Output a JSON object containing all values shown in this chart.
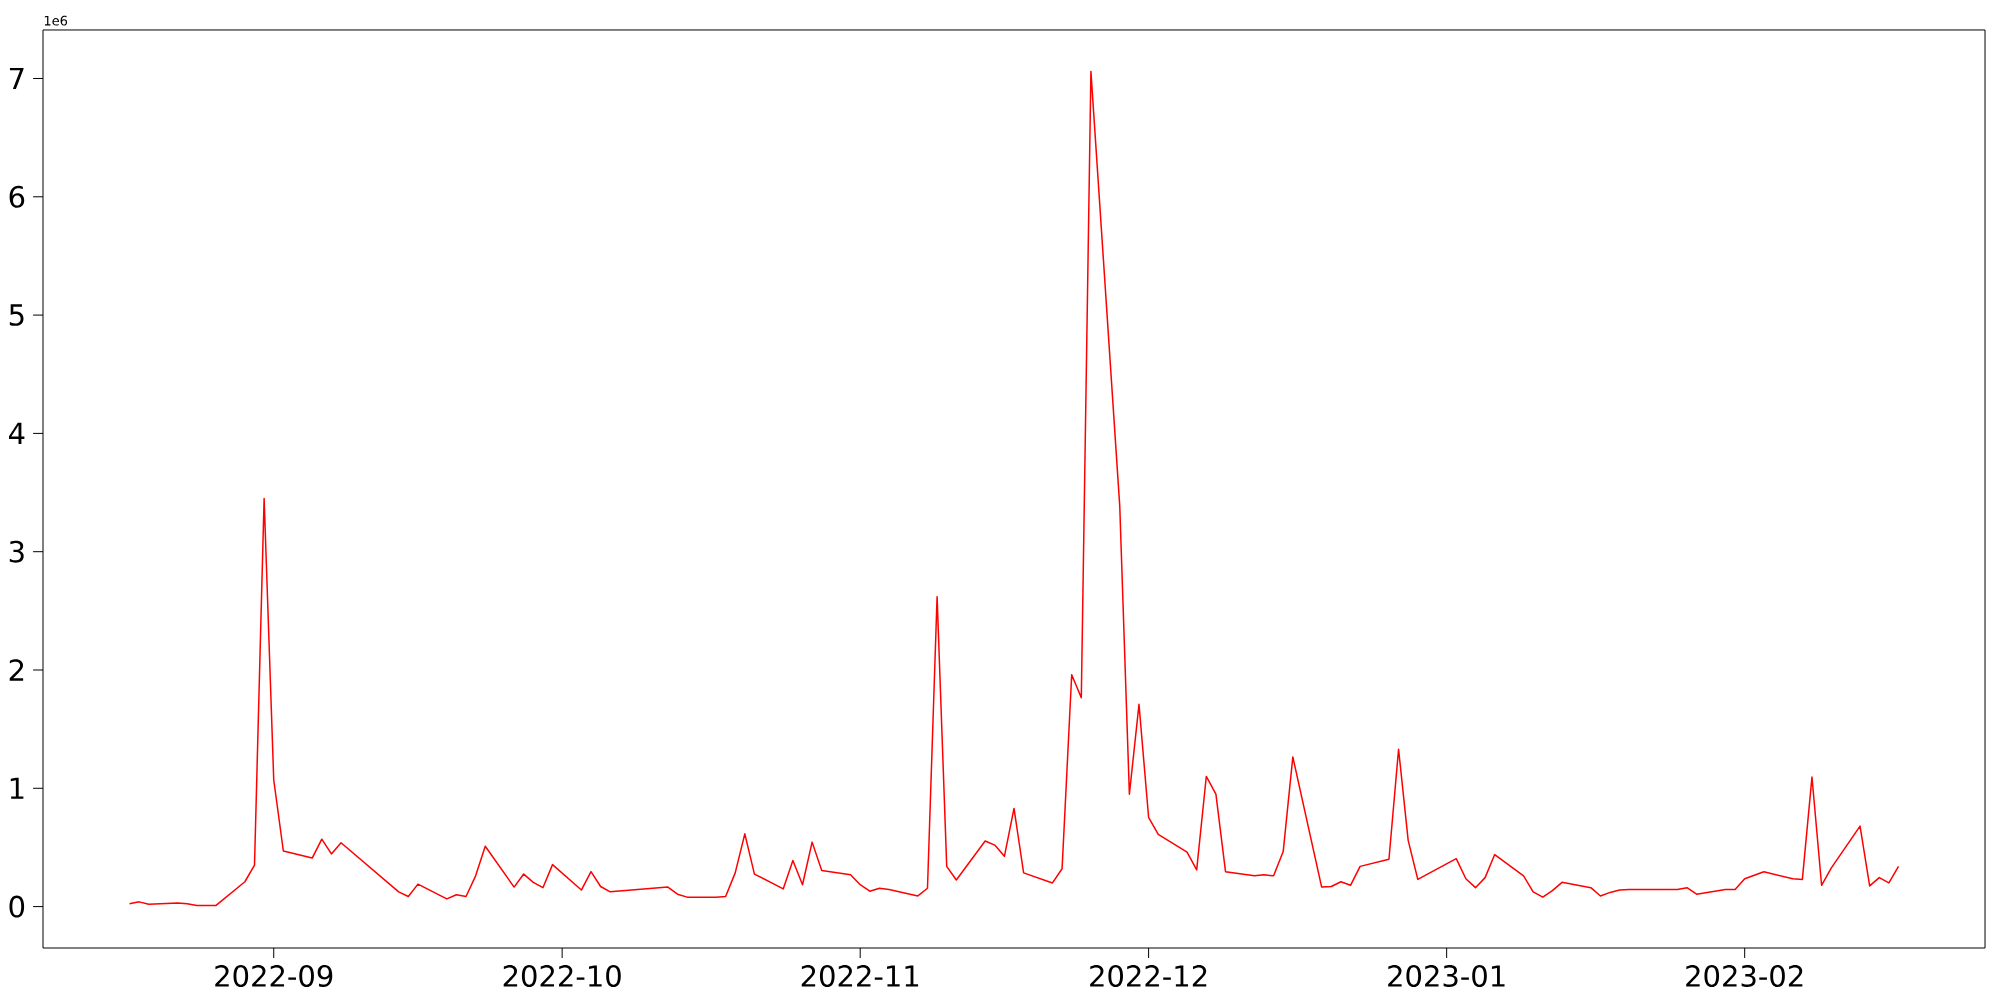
{
  "chart_data": {
    "type": "line",
    "color": "#ff0000",
    "line_style": "solid",
    "marker": "none",
    "x": [
      "2022-08-17",
      "2022-08-18",
      "2022-08-19",
      "2022-08-22",
      "2022-08-23",
      "2022-08-24",
      "2022-08-26",
      "2022-08-29",
      "2022-08-30",
      "2022-08-31",
      "2022-09-01",
      "2022-09-02",
      "2022-09-05",
      "2022-09-06",
      "2022-09-07",
      "2022-09-08",
      "2022-09-14",
      "2022-09-15",
      "2022-09-16",
      "2022-09-19",
      "2022-09-20",
      "2022-09-21",
      "2022-09-22",
      "2022-09-23",
      "2022-09-26",
      "2022-09-27",
      "2022-09-28",
      "2022-09-29",
      "2022-09-30",
      "2022-10-03",
      "2022-10-04",
      "2022-10-05",
      "2022-10-06",
      "2022-10-12",
      "2022-10-13",
      "2022-10-14",
      "2022-10-17",
      "2022-10-18",
      "2022-10-19",
      "2022-10-20",
      "2022-10-21",
      "2022-10-24",
      "2022-10-25",
      "2022-10-26",
      "2022-10-27",
      "2022-10-28",
      "2022-10-31",
      "2022-11-01",
      "2022-11-02",
      "2022-11-03",
      "2022-11-04",
      "2022-11-07",
      "2022-11-08",
      "2022-11-09",
      "2022-11-10",
      "2022-11-11",
      "2022-11-14",
      "2022-11-15",
      "2022-11-16",
      "2022-11-17",
      "2022-11-18",
      "2022-11-21",
      "2022-11-22",
      "2022-11-23",
      "2022-11-24",
      "2022-11-25",
      "2022-11-28",
      "2022-11-29",
      "2022-11-30",
      "2022-12-01",
      "2022-12-02",
      "2022-12-05",
      "2022-12-06",
      "2022-12-07",
      "2022-12-08",
      "2022-12-09",
      "2022-12-12",
      "2022-12-13",
      "2022-12-14",
      "2022-12-15",
      "2022-12-16",
      "2022-12-19",
      "2022-12-20",
      "2022-12-21",
      "2022-12-22",
      "2022-12-23",
      "2022-12-26",
      "2022-12-27",
      "2022-12-28",
      "2022-12-29",
      "2023-01-02",
      "2023-01-03",
      "2023-01-04",
      "2023-01-05",
      "2023-01-06",
      "2023-01-09",
      "2023-01-10",
      "2023-01-11",
      "2023-01-12",
      "2023-01-13",
      "2023-01-16",
      "2023-01-17",
      "2023-01-18",
      "2023-01-19",
      "2023-01-20",
      "2023-01-23",
      "2023-01-24",
      "2023-01-25",
      "2023-01-26",
      "2023-01-27",
      "2023-01-30",
      "2023-01-31",
      "2023-02-01",
      "2023-02-02",
      "2023-02-03",
      "2023-02-06",
      "2023-02-07",
      "2023-02-08",
      "2023-02-09",
      "2023-02-10",
      "2023-02-13",
      "2023-02-14",
      "2023-02-15",
      "2023-02-16",
      "2023-02-17"
    ],
    "values": [
      0.025,
      0.04,
      0.02,
      0.03,
      0.025,
      0.01,
      0.01,
      0.21,
      0.35,
      3.45,
      1.07,
      0.47,
      0.41,
      0.57,
      0.445,
      0.54,
      0.125,
      0.085,
      0.19,
      0.065,
      0.1,
      0.085,
      0.26,
      0.51,
      0.165,
      0.275,
      0.205,
      0.16,
      0.355,
      0.14,
      0.295,
      0.17,
      0.125,
      0.165,
      0.105,
      0.08,
      0.08,
      0.085,
      0.285,
      0.615,
      0.275,
      0.15,
      0.39,
      0.185,
      0.545,
      0.305,
      0.27,
      0.185,
      0.13,
      0.155,
      0.145,
      0.09,
      0.155,
      2.62,
      0.34,
      0.225,
      0.555,
      0.52,
      0.425,
      0.83,
      0.285,
      0.2,
      0.32,
      1.96,
      1.765,
      7.06,
      3.385,
      0.95,
      1.71,
      0.755,
      0.61,
      0.46,
      0.31,
      1.1,
      0.95,
      0.295,
      0.26,
      0.27,
      0.26,
      0.465,
      1.265,
      0.165,
      0.17,
      0.21,
      0.18,
      0.34,
      0.4,
      1.33,
      0.56,
      0.23,
      0.405,
      0.235,
      0.16,
      0.245,
      0.44,
      0.26,
      0.125,
      0.08,
      0.135,
      0.205,
      0.16,
      0.09,
      0.12,
      0.14,
      0.145,
      0.145,
      0.145,
      0.145,
      0.16,
      0.105,
      0.145,
      0.145,
      0.235,
      0.265,
      0.295,
      0.235,
      0.23,
      1.095,
      0.18,
      0.325,
      0.68,
      0.175,
      0.245,
      0.2,
      0.34
    ],
    "xlim": [
      "2022-08-08",
      "2023-02-26"
    ],
    "xticks": [
      {
        "value": "2022-09-01",
        "label": "2022-09"
      },
      {
        "value": "2022-10-01",
        "label": "2022-10"
      },
      {
        "value": "2022-11-01",
        "label": "2022-11"
      },
      {
        "value": "2022-12-01",
        "label": "2022-12"
      },
      {
        "value": "2023-01-01",
        "label": "2023-01"
      },
      {
        "value": "2023-02-01",
        "label": "2023-02"
      }
    ],
    "ylim": [
      -0.35,
      7.41
    ],
    "yticks": [
      0,
      1,
      2,
      3,
      4,
      5,
      6,
      7
    ],
    "annotations": [
      "1e6"
    ]
  }
}
